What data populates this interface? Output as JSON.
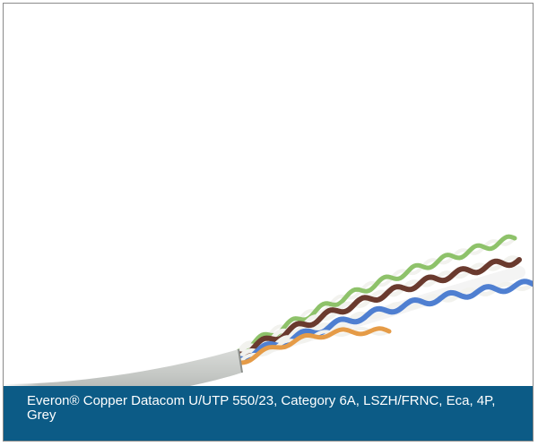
{
  "product": {
    "caption": "Everon® Copper Datacom U/UTP 550/23, Category 6A, LSZH/FRNC, Eca, 4P, Grey",
    "image_icon": "cable-icon"
  },
  "colors": {
    "caption_bar": "#0c5b86",
    "caption_text": "#ffffff",
    "frame_border": "#8a8a8a",
    "cable_jacket": "#c9cbc9",
    "pair_green": "#8ec26a",
    "pair_brown": "#6a3a2e",
    "pair_blue": "#4f7fd1",
    "pair_orange": "#e59b47"
  }
}
